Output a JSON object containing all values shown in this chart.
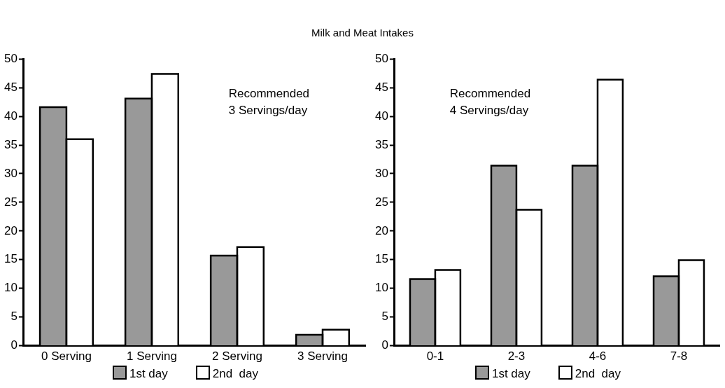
{
  "chart_data": [
    {
      "type": "bar",
      "title": "Milk and Meat Intakes",
      "categories": [
        "0 Serving",
        "1 Serving",
        "2 Serving",
        "3 Serving"
      ],
      "series": [
        {
          "name": "1st day",
          "color": "#999999",
          "values": [
            41.6,
            43.1,
            15.7,
            1.9
          ]
        },
        {
          "name": "2nd  day",
          "color": "#ffffff",
          "values": [
            36.0,
            47.4,
            17.2,
            2.8
          ]
        }
      ],
      "ylim": [
        0,
        50
      ],
      "yticks": [
        0,
        5,
        10,
        15,
        20,
        25,
        30,
        35,
        40,
        45,
        50
      ],
      "grid": false,
      "legend": "bottom",
      "annotations": [
        "Recommended\n3 Servings/day"
      ]
    },
    {
      "type": "bar",
      "categories": [
        "0-1",
        "2-3",
        "4-6",
        "7-8"
      ],
      "series": [
        {
          "name": "1st day",
          "color": "#999999",
          "values": [
            11.6,
            31.4,
            31.4,
            12.1
          ]
        },
        {
          "name": "2nd  day",
          "color": "#ffffff",
          "values": [
            13.2,
            23.7,
            46.4,
            14.9
          ]
        }
      ],
      "ylim": [
        0,
        50
      ],
      "yticks": [
        0,
        5,
        10,
        15,
        20,
        25,
        30,
        35,
        40,
        45,
        50
      ],
      "grid": false,
      "legend": "bottom",
      "annotations": [
        "Recommended\n4 Servings/day"
      ]
    }
  ]
}
